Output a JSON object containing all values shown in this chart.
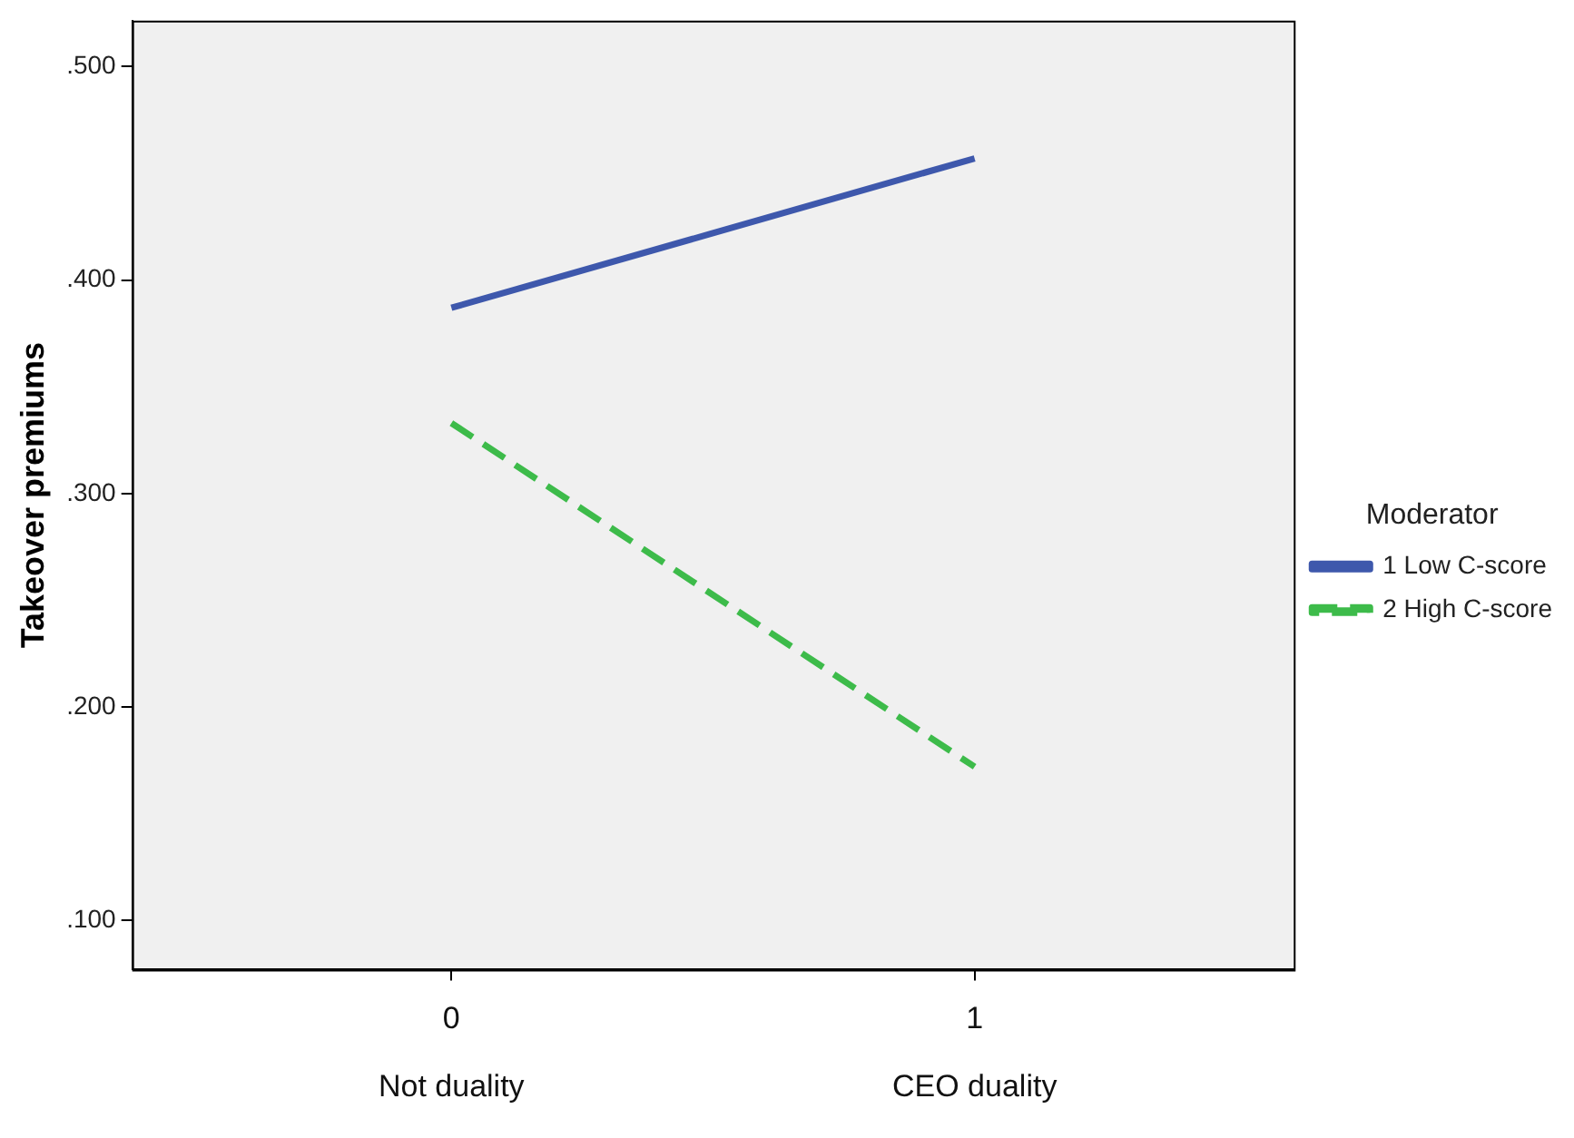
{
  "chart_data": {
    "type": "line",
    "ylabel": "Takeover premiums",
    "legend_title": "Moderator",
    "legend": "right",
    "line_style": "solid",
    "x": [
      0,
      1
    ],
    "xlim": [
      -0.61,
      1.61
    ],
    "xticks": [
      {
        "value": 0,
        "label": "0\nNot duality"
      },
      {
        "value": 1,
        "label": "1\nCEO duality"
      }
    ],
    "ylim": [
      0.077,
      0.5215
    ],
    "yticks": [
      {
        "value": 0.1,
        "label": ".100"
      },
      {
        "value": 0.2,
        "label": ".200"
      },
      {
        "value": 0.3,
        "label": ".300"
      },
      {
        "value": 0.4,
        "label": ".400"
      },
      {
        "value": 0.5,
        "label": ".500"
      }
    ],
    "series": [
      {
        "name": "1 Low C-score",
        "color": "#3e58ac",
        "values": [
          0.387,
          0.457
        ]
      },
      {
        "name": "2 High C-score",
        "color": "#3dbb4a",
        "values": [
          0.333,
          0.172
        ],
        "line_style": "dashed"
      }
    ],
    "grid": false
  }
}
